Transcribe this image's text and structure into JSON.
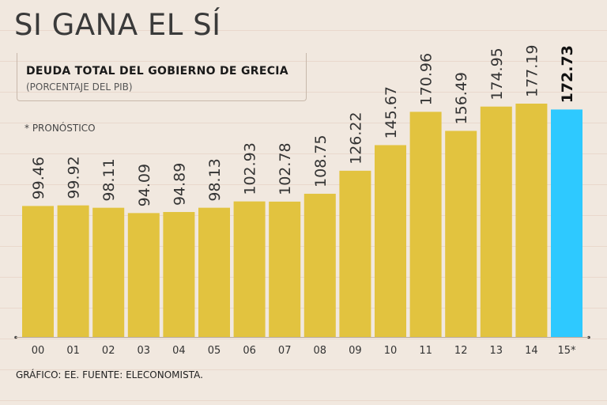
{
  "headline": "SI GANA EL SÍ",
  "footnote": "* PRONÓSTICO",
  "source": "GRÁFICO: EE. FUENTE: ELECONOMISTA.",
  "colors": {
    "bar": "#e2c33f",
    "highlight": "#2ec9ff",
    "background": "#f1e8df"
  },
  "chart_data": {
    "type": "bar",
    "title": "DEUDA TOTAL DEL GOBIERNO DE GRECIA",
    "subtitle": "(PORCENTAJE DEL PIB)",
    "xlabel": "",
    "ylabel": "",
    "ylim": [
      0,
      185
    ],
    "categories": [
      "00",
      "01",
      "02",
      "03",
      "04",
      "05",
      "06",
      "07",
      "08",
      "09",
      "10",
      "11",
      "12",
      "13",
      "14",
      "15*"
    ],
    "values": [
      99.46,
      99.92,
      98.11,
      94.09,
      94.89,
      98.13,
      102.93,
      102.78,
      108.75,
      126.22,
      145.67,
      170.96,
      156.49,
      174.95,
      177.19,
      172.73
    ],
    "labels": [
      "99.46",
      "99.92",
      "98.11",
      "94.09",
      "94.89",
      "98.13",
      "102.93",
      "102.78",
      "108.75",
      "126.22",
      "145.67",
      "170.96",
      "156.49",
      "174.95",
      "177.19",
      "172.73"
    ],
    "highlighted_category": "15*"
  }
}
